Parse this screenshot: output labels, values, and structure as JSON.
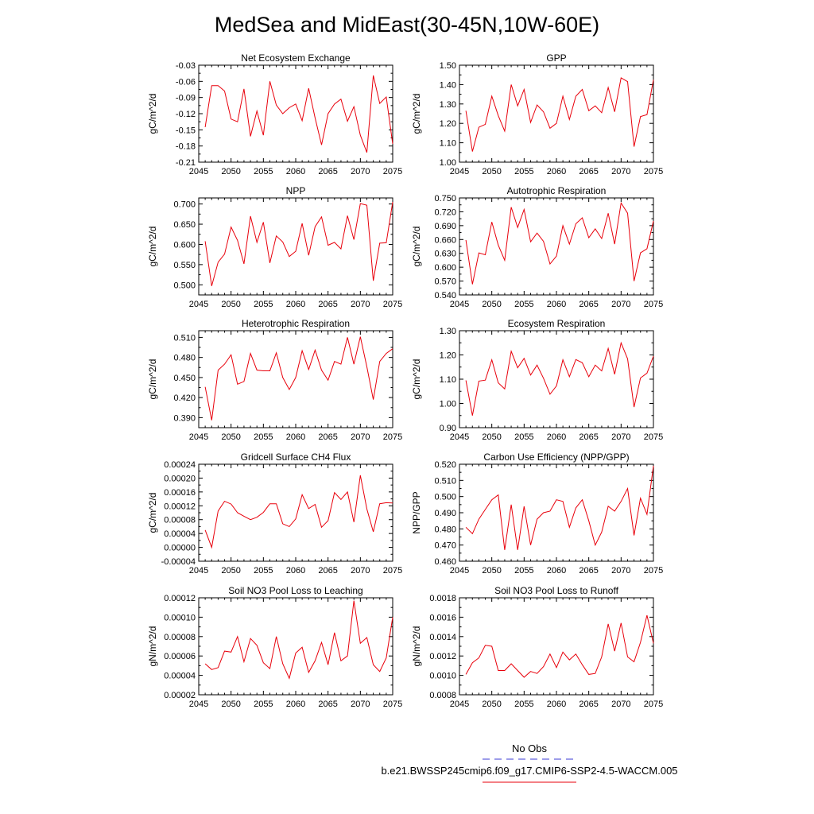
{
  "figure_title": "MedSea and MidEast(30-45N,10W-60E)",
  "colors": {
    "model_line": "#e8000b",
    "obs_line": "#3b3bd6",
    "axis": "#000000"
  },
  "legend": {
    "obs_label": "No Obs",
    "model_label": "b.e21.BWSSP245cmip6.f09_g17.CMIP6-SSP2-4.5-WACCM.005"
  },
  "chart_data": [
    {
      "type": "line",
      "title": "Net Ecosystem Exchange",
      "ylabel": "gC/m^2/d",
      "xlim": [
        2045,
        2075
      ],
      "ylim": [
        -0.21,
        -0.03
      ],
      "xticks": [
        2045,
        2050,
        2055,
        2060,
        2065,
        2070,
        2075
      ],
      "xtick_labels": [
        "2045",
        "2050",
        "2055",
        "2060",
        "2065",
        "2070",
        "2075"
      ],
      "yticks": [
        -0.21,
        -0.18,
        -0.15,
        -0.12,
        -0.09,
        -0.06,
        -0.03
      ],
      "ytick_labels": [
        "-0.21",
        "-0.18",
        "-0.15",
        "-0.12",
        "-0.09",
        "-0.06",
        "-0.03"
      ],
      "x": [
        2046,
        2047,
        2048,
        2049,
        2050,
        2051,
        2052,
        2053,
        2054,
        2055,
        2056,
        2057,
        2058,
        2059,
        2060,
        2061,
        2062,
        2063,
        2064,
        2065,
        2066,
        2067,
        2068,
        2069,
        2070,
        2071,
        2072,
        2073,
        2074,
        2075
      ],
      "values": [
        -0.145,
        -0.068,
        -0.068,
        -0.078,
        -0.13,
        -0.135,
        -0.074,
        -0.162,
        -0.115,
        -0.16,
        -0.06,
        -0.104,
        -0.12,
        -0.109,
        -0.102,
        -0.133,
        -0.073,
        -0.128,
        -0.178,
        -0.12,
        -0.102,
        -0.093,
        -0.134,
        -0.107,
        -0.16,
        -0.192,
        -0.049,
        -0.101,
        -0.089,
        -0.176
      ]
    },
    {
      "type": "line",
      "title": "GPP",
      "ylabel": "gC/m^2/d",
      "xlim": [
        2045,
        2075
      ],
      "ylim": [
        1.0,
        1.5
      ],
      "xticks": [
        2045,
        2050,
        2055,
        2060,
        2065,
        2070,
        2075
      ],
      "xtick_labels": [
        "2045",
        "2050",
        "2055",
        "2060",
        "2065",
        "2070",
        "2075"
      ],
      "yticks": [
        1.0,
        1.1,
        1.2,
        1.3,
        1.4,
        1.5
      ],
      "ytick_labels": [
        "1.00",
        "1.10",
        "1.20",
        "1.30",
        "1.40",
        "1.50"
      ],
      "x": [
        2046,
        2047,
        2048,
        2049,
        2050,
        2051,
        2052,
        2053,
        2054,
        2055,
        2056,
        2057,
        2058,
        2059,
        2060,
        2061,
        2062,
        2063,
        2064,
        2065,
        2066,
        2067,
        2068,
        2069,
        2070,
        2071,
        2072,
        2073,
        2074,
        2075
      ],
      "values": [
        1.265,
        1.055,
        1.18,
        1.195,
        1.34,
        1.24,
        1.16,
        1.4,
        1.29,
        1.375,
        1.205,
        1.295,
        1.26,
        1.175,
        1.2,
        1.34,
        1.22,
        1.34,
        1.375,
        1.265,
        1.29,
        1.255,
        1.385,
        1.26,
        1.435,
        1.415,
        1.08,
        1.235,
        1.245,
        1.425
      ]
    },
    {
      "type": "line",
      "title": "NPP",
      "ylabel": "gC/m^2/d",
      "xlim": [
        2045,
        2075
      ],
      "ylim": [
        0.475,
        0.715
      ],
      "xticks": [
        2045,
        2050,
        2055,
        2060,
        2065,
        2070,
        2075
      ],
      "xtick_labels": [
        "2045",
        "2050",
        "2055",
        "2060",
        "2065",
        "2070",
        "2075"
      ],
      "yticks": [
        0.5,
        0.55,
        0.6,
        0.65,
        0.7
      ],
      "ytick_labels": [
        "0.500",
        "0.550",
        "0.600",
        "0.650",
        "0.700"
      ],
      "x": [
        2046,
        2047,
        2048,
        2049,
        2050,
        2051,
        2052,
        2053,
        2054,
        2055,
        2056,
        2057,
        2058,
        2059,
        2060,
        2061,
        2062,
        2063,
        2064,
        2065,
        2066,
        2067,
        2068,
        2069,
        2070,
        2071,
        2072,
        2073,
        2074,
        2075
      ],
      "values": [
        0.608,
        0.497,
        0.556,
        0.576,
        0.643,
        0.61,
        0.552,
        0.67,
        0.605,
        0.655,
        0.554,
        0.621,
        0.606,
        0.57,
        0.583,
        0.652,
        0.573,
        0.644,
        0.668,
        0.598,
        0.605,
        0.589,
        0.671,
        0.612,
        0.701,
        0.697,
        0.51,
        0.603,
        0.604,
        0.705
      ]
    },
    {
      "type": "line",
      "title": "Autotrophic Respiration",
      "ylabel": "gC/m^2/d",
      "xlim": [
        2045,
        2075
      ],
      "ylim": [
        0.54,
        0.75
      ],
      "xticks": [
        2045,
        2050,
        2055,
        2060,
        2065,
        2070,
        2075
      ],
      "xtick_labels": [
        "2045",
        "2050",
        "2055",
        "2060",
        "2065",
        "2070",
        "2075"
      ],
      "yticks": [
        0.54,
        0.57,
        0.6,
        0.63,
        0.66,
        0.69,
        0.72,
        0.75
      ],
      "ytick_labels": [
        "0.540",
        "0.570",
        "0.600",
        "0.630",
        "0.660",
        "0.690",
        "0.720",
        "0.750"
      ],
      "x": [
        2046,
        2047,
        2048,
        2049,
        2050,
        2051,
        2052,
        2053,
        2054,
        2055,
        2056,
        2057,
        2058,
        2059,
        2060,
        2061,
        2062,
        2063,
        2064,
        2065,
        2066,
        2067,
        2068,
        2069,
        2070,
        2071,
        2072,
        2073,
        2074,
        2075
      ],
      "values": [
        0.659,
        0.563,
        0.631,
        0.627,
        0.698,
        0.648,
        0.615,
        0.73,
        0.686,
        0.725,
        0.655,
        0.674,
        0.656,
        0.607,
        0.624,
        0.69,
        0.65,
        0.694,
        0.707,
        0.664,
        0.683,
        0.662,
        0.717,
        0.65,
        0.739,
        0.717,
        0.57,
        0.631,
        0.64,
        0.7
      ]
    },
    {
      "type": "line",
      "title": "Heterotrophic Respiration",
      "ylabel": "gC/m^2/d",
      "xlim": [
        2045,
        2075
      ],
      "ylim": [
        0.375,
        0.52
      ],
      "xticks": [
        2045,
        2050,
        2055,
        2060,
        2065,
        2070,
        2075
      ],
      "xtick_labels": [
        "2045",
        "2050",
        "2055",
        "2060",
        "2065",
        "2070",
        "2075"
      ],
      "yticks": [
        0.39,
        0.42,
        0.45,
        0.48,
        0.51
      ],
      "ytick_labels": [
        "0.390",
        "0.420",
        "0.450",
        "0.480",
        "0.510"
      ],
      "x": [
        2046,
        2047,
        2048,
        2049,
        2050,
        2051,
        2052,
        2053,
        2054,
        2055,
        2056,
        2057,
        2058,
        2059,
        2060,
        2061,
        2062,
        2063,
        2064,
        2065,
        2066,
        2067,
        2068,
        2069,
        2070,
        2071,
        2072,
        2073,
        2074,
        2075
      ],
      "values": [
        0.436,
        0.386,
        0.461,
        0.47,
        0.484,
        0.44,
        0.444,
        0.486,
        0.461,
        0.46,
        0.46,
        0.487,
        0.45,
        0.432,
        0.45,
        0.49,
        0.462,
        0.491,
        0.461,
        0.446,
        0.474,
        0.47,
        0.51,
        0.47,
        0.511,
        0.466,
        0.417,
        0.474,
        0.486,
        0.493
      ]
    },
    {
      "type": "line",
      "title": "Ecosystem Respiration",
      "ylabel": "gC/m^2/d",
      "xlim": [
        2045,
        2075
      ],
      "ylim": [
        0.9,
        1.3
      ],
      "xticks": [
        2045,
        2050,
        2055,
        2060,
        2065,
        2070,
        2075
      ],
      "xtick_labels": [
        "2045",
        "2050",
        "2055",
        "2060",
        "2065",
        "2070",
        "2075"
      ],
      "yticks": [
        0.9,
        1.0,
        1.1,
        1.2,
        1.3
      ],
      "ytick_labels": [
        "0.90",
        "1.00",
        "1.10",
        "1.20",
        "1.30"
      ],
      "x": [
        2046,
        2047,
        2048,
        2049,
        2050,
        2051,
        2052,
        2053,
        2054,
        2055,
        2056,
        2057,
        2058,
        2059,
        2060,
        2061,
        2062,
        2063,
        2064,
        2065,
        2066,
        2067,
        2068,
        2069,
        2070,
        2071,
        2072,
        2073,
        2074,
        2075
      ],
      "values": [
        1.095,
        0.95,
        1.092,
        1.096,
        1.18,
        1.085,
        1.06,
        1.215,
        1.147,
        1.186,
        1.117,
        1.158,
        1.104,
        1.038,
        1.072,
        1.18,
        1.11,
        1.181,
        1.168,
        1.11,
        1.158,
        1.134,
        1.227,
        1.12,
        1.25,
        1.184,
        0.985,
        1.105,
        1.125,
        1.195
      ]
    },
    {
      "type": "line",
      "title": "Gridcell Surface CH4 Flux",
      "ylabel": "gC/m^2/d",
      "xlim": [
        2045,
        2075
      ],
      "ylim": [
        -4e-05,
        0.00024
      ],
      "xticks": [
        2045,
        2050,
        2055,
        2060,
        2065,
        2070,
        2075
      ],
      "xtick_labels": [
        "2045",
        "2050",
        "2055",
        "2060",
        "2065",
        "2070",
        "2075"
      ],
      "yticks": [
        -4e-05,
        0.0,
        4e-05,
        8e-05,
        0.00012,
        0.00016,
        0.0002,
        0.00024
      ],
      "ytick_labels": [
        "-0.00004",
        "0.00000",
        "0.00004",
        "0.00008",
        "0.00012",
        "0.00016",
        "0.00020",
        "0.00024"
      ],
      "x": [
        2046,
        2047,
        2048,
        2049,
        2050,
        2051,
        2052,
        2053,
        2054,
        2055,
        2056,
        2057,
        2058,
        2059,
        2060,
        2061,
        2062,
        2063,
        2064,
        2065,
        2066,
        2067,
        2068,
        2069,
        2070,
        2071,
        2072,
        2073,
        2074,
        2075
      ],
      "values": [
        5e-05,
        0.0,
        0.000105,
        0.000133,
        0.000125,
        0.0001,
        9e-05,
        8e-05,
        8.7e-05,
        0.000101,
        0.000126,
        0.000126,
        6.8e-05,
        6e-05,
        8.2e-05,
        0.000152,
        0.000112,
        0.000124,
        5.8e-05,
        7.7e-05,
        0.000158,
        0.000138,
        0.00016,
        7.3e-05,
        0.000208,
        0.000111,
        4.5e-05,
        0.000126,
        0.000129,
        0.000128
      ]
    },
    {
      "type": "line",
      "title": "Carbon Use Efficiency (NPP/GPP)",
      "ylabel": "NPP/GPP",
      "xlim": [
        2045,
        2075
      ],
      "ylim": [
        0.46,
        0.52
      ],
      "xticks": [
        2045,
        2050,
        2055,
        2060,
        2065,
        2070,
        2075
      ],
      "xtick_labels": [
        "2045",
        "2050",
        "2055",
        "2060",
        "2065",
        "2070",
        "2075"
      ],
      "yticks": [
        0.46,
        0.47,
        0.48,
        0.49,
        0.5,
        0.51,
        0.52
      ],
      "ytick_labels": [
        "0.460",
        "0.470",
        "0.480",
        "0.490",
        "0.500",
        "0.510",
        "0.520"
      ],
      "x": [
        2046,
        2047,
        2048,
        2049,
        2050,
        2051,
        2052,
        2053,
        2054,
        2055,
        2056,
        2057,
        2058,
        2059,
        2060,
        2061,
        2062,
        2063,
        2064,
        2065,
        2066,
        2067,
        2068,
        2069,
        2070,
        2071,
        2072,
        2073,
        2074,
        2075
      ],
      "values": [
        0.481,
        0.477,
        0.486,
        0.492,
        0.498,
        0.501,
        0.467,
        0.495,
        0.467,
        0.494,
        0.47,
        0.486,
        0.49,
        0.491,
        0.498,
        0.497,
        0.481,
        0.493,
        0.498,
        0.485,
        0.47,
        0.478,
        0.494,
        0.491,
        0.497,
        0.505,
        0.476,
        0.499,
        0.489,
        0.519
      ]
    },
    {
      "type": "line",
      "title": "Soil NO3 Pool Loss to Leaching",
      "ylabel": "gN/m^2/d",
      "xlim": [
        2045,
        2075
      ],
      "ylim": [
        2e-05,
        0.00012
      ],
      "xticks": [
        2045,
        2050,
        2055,
        2060,
        2065,
        2070,
        2075
      ],
      "xtick_labels": [
        "2045",
        "2050",
        "2055",
        "2060",
        "2065",
        "2070",
        "2075"
      ],
      "yticks": [
        2e-05,
        4e-05,
        6e-05,
        8e-05,
        0.0001,
        0.00012
      ],
      "ytick_labels": [
        "0.00002",
        "0.00004",
        "0.00006",
        "0.00008",
        "0.00010",
        "0.00012"
      ],
      "x": [
        2046,
        2047,
        2048,
        2049,
        2050,
        2051,
        2052,
        2053,
        2054,
        2055,
        2056,
        2057,
        2058,
        2059,
        2060,
        2061,
        2062,
        2063,
        2064,
        2065,
        2066,
        2067,
        2068,
        2069,
        2070,
        2071,
        2072,
        2073,
        2074,
        2075
      ],
      "values": [
        5.2e-05,
        4.6e-05,
        4.8e-05,
        6.5e-05,
        6.4e-05,
        8e-05,
        5.4e-05,
        7.8e-05,
        7.1e-05,
        5.3e-05,
        4.7e-05,
        8e-05,
        5.2e-05,
        3.7e-05,
        6.3e-05,
        6.9e-05,
        4.3e-05,
        5.5e-05,
        7.4e-05,
        5.1e-05,
        8.4e-05,
        5.5e-05,
        6e-05,
        0.000117,
        7.3e-05,
        7.9e-05,
        5.1e-05,
        4.4e-05,
        5.8e-05,
        0.0001
      ]
    },
    {
      "type": "line",
      "title": "Soil NO3 Pool Loss to Runoff",
      "ylabel": "gN/m^2/d",
      "xlim": [
        2045,
        2075
      ],
      "ylim": [
        0.0008,
        0.0018
      ],
      "xticks": [
        2045,
        2050,
        2055,
        2060,
        2065,
        2070,
        2075
      ],
      "xtick_labels": [
        "2045",
        "2050",
        "2055",
        "2060",
        "2065",
        "2070",
        "2075"
      ],
      "yticks": [
        0.0008,
        0.001,
        0.0012,
        0.0014,
        0.0016,
        0.0018
      ],
      "ytick_labels": [
        "0.0008",
        "0.0010",
        "0.0012",
        "0.0014",
        "0.0016",
        "0.0018"
      ],
      "x": [
        2046,
        2047,
        2048,
        2049,
        2050,
        2051,
        2052,
        2053,
        2054,
        2055,
        2056,
        2057,
        2058,
        2059,
        2060,
        2061,
        2062,
        2063,
        2064,
        2065,
        2066,
        2067,
        2068,
        2069,
        2070,
        2071,
        2072,
        2073,
        2074,
        2075
      ],
      "values": [
        0.00101,
        0.00113,
        0.00118,
        0.00131,
        0.0013,
        0.00105,
        0.00105,
        0.00112,
        0.00105,
        0.00098,
        0.00104,
        0.00102,
        0.00109,
        0.00122,
        0.00108,
        0.00124,
        0.00116,
        0.00122,
        0.00111,
        0.00101,
        0.00102,
        0.00119,
        0.00153,
        0.00125,
        0.00154,
        0.00119,
        0.00114,
        0.00134,
        0.00162,
        0.00133
      ]
    }
  ]
}
